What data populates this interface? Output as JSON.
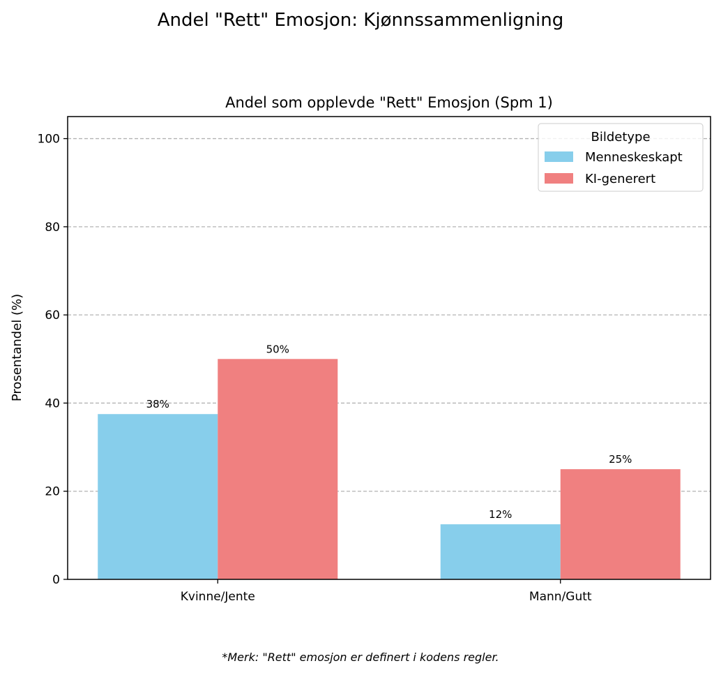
{
  "figure": {
    "suptitle": "Andel \"Rett\" Emosjon: Kjønnssammenligning",
    "footnote": "*Merk: \"Rett\" emosjon er definert i kodens regler."
  },
  "chart_data": {
    "type": "bar",
    "title": "Andel som opplevde \"Rett\" Emosjon (Spm 1)",
    "xlabel": "",
    "ylabel": "Prosentandel (%)",
    "categories": [
      "Kvinne/Jente",
      "Mann/Gutt"
    ],
    "series": [
      {
        "name": "Menneskeskapt",
        "color": "#87ceeb",
        "values": [
          37.5,
          12.5
        ],
        "labels": [
          "38%",
          "12%"
        ]
      },
      {
        "name": "KI-generert",
        "color": "#f08080",
        "values": [
          50,
          25
        ],
        "labels": [
          "50%",
          "25%"
        ]
      }
    ],
    "ylim": [
      0,
      105
    ],
    "yticks": [
      0,
      20,
      40,
      60,
      80,
      100
    ],
    "grid": "y-dashed",
    "legend": {
      "title": "Bildetype",
      "placement": "top-right"
    }
  }
}
